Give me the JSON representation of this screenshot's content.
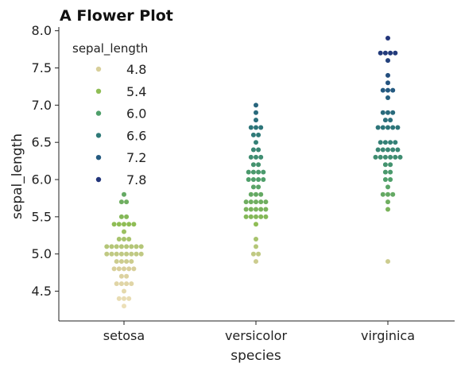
{
  "chart_data": {
    "type": "scatter",
    "subtype": "swarm",
    "title": "A Flower Plot",
    "xlabel": "species",
    "ylabel": "sepal_length",
    "ylim": [
      4.1,
      8.05
    ],
    "yticks": [
      4.5,
      5.0,
      5.5,
      6.0,
      6.5,
      7.0,
      7.5,
      8.0
    ],
    "ytick_labels": [
      "4.5",
      "5.0",
      "5.5",
      "6.0",
      "6.5",
      "7.0",
      "7.5",
      "8.0"
    ],
    "categories": [
      "setosa",
      "versicolor",
      "virginica"
    ],
    "hue": "sepal_length",
    "legend": {
      "title": "sepal_length",
      "placement": "upper-left",
      "entries": [
        {
          "label": "4.8",
          "value": 4.8,
          "color": "#d8cf9a"
        },
        {
          "label": "5.4",
          "value": 5.4,
          "color": "#8fbd55"
        },
        {
          "label": "6.0",
          "value": 6.0,
          "color": "#4f9f6a"
        },
        {
          "label": "6.6",
          "value": 6.6,
          "color": "#2f7a78"
        },
        {
          "label": "7.2",
          "value": 7.2,
          "color": "#245a80"
        },
        {
          "label": "7.8",
          "value": 7.8,
          "color": "#22357a"
        }
      ]
    },
    "series": [
      {
        "category": "setosa",
        "values": [
          5.1,
          4.9,
          4.7,
          4.6,
          5.0,
          5.4,
          4.6,
          5.0,
          4.4,
          4.9,
          5.4,
          4.8,
          4.8,
          4.3,
          5.8,
          5.7,
          5.4,
          5.1,
          5.7,
          5.1,
          5.4,
          5.1,
          4.6,
          5.1,
          4.8,
          5.0,
          5.0,
          5.2,
          5.2,
          4.7,
          4.8,
          5.4,
          5.2,
          5.5,
          4.9,
          5.0,
          5.5,
          4.9,
          4.4,
          5.1,
          5.0,
          4.5,
          4.4,
          5.0,
          5.1,
          4.8,
          5.1,
          4.6,
          5.3,
          5.0
        ]
      },
      {
        "category": "versicolor",
        "values": [
          7.0,
          6.4,
          6.9,
          5.5,
          6.5,
          5.7,
          6.3,
          4.9,
          6.6,
          5.2,
          5.0,
          5.9,
          6.0,
          6.1,
          5.6,
          6.7,
          5.6,
          5.8,
          6.2,
          5.6,
          5.9,
          6.1,
          6.3,
          6.1,
          6.4,
          6.6,
          6.8,
          6.7,
          6.0,
          5.7,
          5.5,
          5.5,
          5.8,
          6.0,
          5.4,
          6.0,
          6.7,
          6.3,
          5.6,
          5.5,
          5.5,
          6.1,
          5.8,
          5.0,
          5.6,
          5.7,
          5.7,
          6.2,
          5.1,
          5.7
        ]
      },
      {
        "category": "virginica",
        "values": [
          6.3,
          5.8,
          7.1,
          6.3,
          6.5,
          7.6,
          4.9,
          7.3,
          6.7,
          7.2,
          6.5,
          6.4,
          6.8,
          5.7,
          5.8,
          6.4,
          6.5,
          7.7,
          7.7,
          6.0,
          6.9,
          5.6,
          7.7,
          6.3,
          6.7,
          7.2,
          6.2,
          6.1,
          6.4,
          7.2,
          7.4,
          7.9,
          6.4,
          6.3,
          6.1,
          7.7,
          6.3,
          6.4,
          6.0,
          6.9,
          6.7,
          6.9,
          5.8,
          6.8,
          6.7,
          6.7,
          6.3,
          6.5,
          6.2,
          5.9
        ]
      }
    ]
  }
}
